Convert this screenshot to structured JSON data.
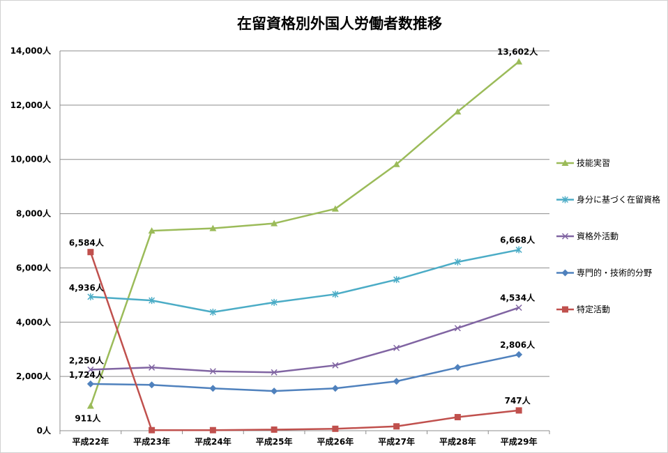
{
  "chart_data": {
    "type": "line",
    "title": "在留資格別外国人労働者数推移",
    "categories": [
      "平成22年",
      "平成23年",
      "平成24年",
      "平成25年",
      "平成26年",
      "平成27年",
      "平成28年",
      "平成29年"
    ],
    "ylim": [
      0,
      14000
    ],
    "yticks": [
      0,
      2000,
      4000,
      6000,
      8000,
      10000,
      12000,
      14000
    ],
    "ytick_labels": [
      "0人",
      "2,000人",
      "4,000人",
      "6,000人",
      "8,000人",
      "10,000人",
      "12,000人",
      "14,000人"
    ],
    "grid": true,
    "legend": "right",
    "series": [
      {
        "name": "技能実習",
        "color": "#9bbb59",
        "marker": "triangle",
        "values": [
          911,
          7370,
          7460,
          7640,
          8180,
          9820,
          11760,
          13602
        ],
        "labels": [
          "911人",
          "",
          "",
          "",
          "",
          "",
          "",
          "13,602人"
        ]
      },
      {
        "name": "身分に基づく在留資格",
        "color": "#4bacc6",
        "marker": "star",
        "values": [
          4936,
          4800,
          4370,
          4730,
          5030,
          5570,
          6220,
          6668
        ],
        "labels": [
          "4,936人",
          "",
          "",
          "",
          "",
          "",
          "",
          "6,668人"
        ]
      },
      {
        "name": "資格外活動",
        "color": "#8064a2",
        "marker": "x",
        "values": [
          2250,
          2330,
          2190,
          2150,
          2410,
          3050,
          3780,
          4534
        ],
        "labels": [
          "2,250人",
          "",
          "",
          "",
          "",
          "",
          "",
          "4,534人"
        ]
      },
      {
        "name": "専門的・技術的分野",
        "color": "#4f81bd",
        "marker": "diamond",
        "values": [
          1724,
          1690,
          1560,
          1460,
          1560,
          1820,
          2330,
          2806
        ],
        "labels": [
          "1,724人",
          "",
          "",
          "",
          "",
          "",
          "",
          "2,806人"
        ]
      },
      {
        "name": "特定活動",
        "color": "#c0504d",
        "marker": "square",
        "values": [
          6584,
          20,
          20,
          40,
          70,
          160,
          500,
          747
        ],
        "labels": [
          "6,584人",
          "",
          "",
          "",
          "",
          "",
          "",
          "747人"
        ]
      }
    ]
  }
}
